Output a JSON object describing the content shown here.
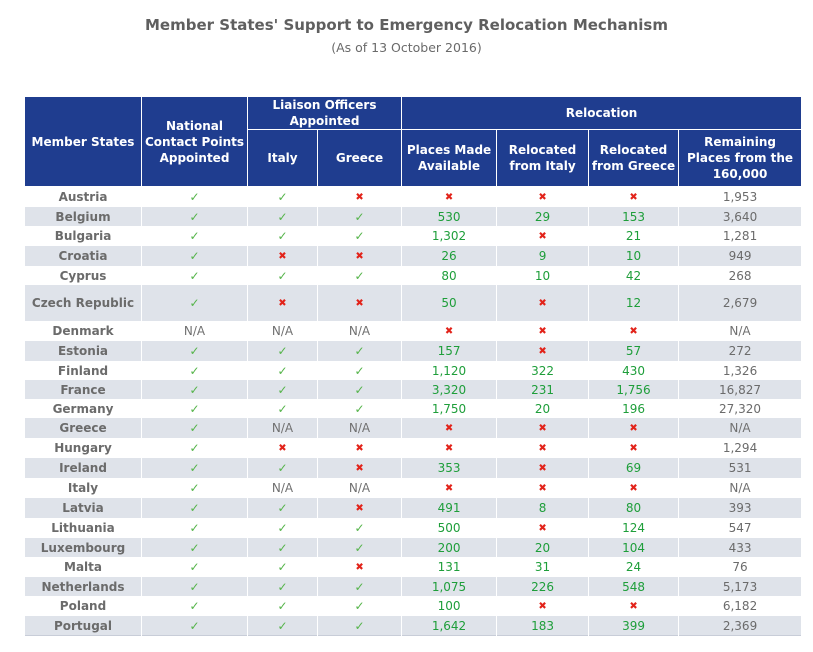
{
  "title": "Member States' Support to Emergency Relocation Mechanism",
  "subtitle": "(As of 13 October 2016)",
  "headers": {
    "member_states": "Member States",
    "ncp": "National Contact Points Appointed",
    "liaison": "Liaison Officers Appointed",
    "italy": "Italy",
    "greece": "Greece",
    "relocation": "Relocation",
    "places": "Places Made Available",
    "rel_italy": "Relocated from Italy",
    "rel_greece": "Relocated from Greece",
    "remaining": "Remaining Places from the 160,000"
  },
  "rows": [
    {
      "state": "Austria",
      "ncp": "yes",
      "lo_italy": "yes",
      "lo_greece": "no",
      "places": "no",
      "rel_italy": "no",
      "rel_greece": "no",
      "remaining": "1,953"
    },
    {
      "state": "Belgium",
      "ncp": "yes",
      "lo_italy": "yes",
      "lo_greece": "yes",
      "places": "530",
      "rel_italy": "29",
      "rel_greece": "153",
      "remaining": "3,640"
    },
    {
      "state": "Bulgaria",
      "ncp": "yes",
      "lo_italy": "yes",
      "lo_greece": "yes",
      "places": "1,302",
      "rel_italy": "no",
      "rel_greece": "21",
      "remaining": "1,281"
    },
    {
      "state": "Croatia",
      "ncp": "yes",
      "lo_italy": "no",
      "lo_greece": "no",
      "places": "26",
      "rel_italy": "9",
      "rel_greece": "10",
      "remaining": "949"
    },
    {
      "state": "Cyprus",
      "ncp": "yes",
      "lo_italy": "yes",
      "lo_greece": "yes",
      "places": "80",
      "rel_italy": "10",
      "rel_greece": "42",
      "remaining": "268"
    },
    {
      "state": "Czech Republic",
      "ncp": "yes",
      "lo_italy": "no",
      "lo_greece": "no",
      "places": "50",
      "rel_italy": "no",
      "rel_greece": "12",
      "remaining": "2,679",
      "tall": true
    },
    {
      "state": "Denmark",
      "ncp": "N/A",
      "lo_italy": "N/A",
      "lo_greece": "N/A",
      "places": "no",
      "rel_italy": "no",
      "rel_greece": "no",
      "remaining": "N/A"
    },
    {
      "state": "Estonia",
      "ncp": "yes",
      "lo_italy": "yes",
      "lo_greece": "yes",
      "places": "157",
      "rel_italy": "no",
      "rel_greece": "57",
      "remaining": "272"
    },
    {
      "state": "Finland",
      "ncp": "yes",
      "lo_italy": "yes",
      "lo_greece": "yes",
      "places": "1,120",
      "rel_italy": "322",
      "rel_greece": "430",
      "remaining": "1,326"
    },
    {
      "state": "France",
      "ncp": "yes",
      "lo_italy": "yes",
      "lo_greece": "yes",
      "places": "3,320",
      "rel_italy": "231",
      "rel_greece": "1,756",
      "remaining": "16,827"
    },
    {
      "state": "Germany",
      "ncp": "yes",
      "lo_italy": "yes",
      "lo_greece": "yes",
      "places": "1,750",
      "rel_italy": "20",
      "rel_greece": "196",
      "remaining": "27,320"
    },
    {
      "state": "Greece",
      "ncp": "yes",
      "lo_italy": "N/A",
      "lo_greece": "N/A",
      "places": "no",
      "rel_italy": "no",
      "rel_greece": "no",
      "remaining": "N/A"
    },
    {
      "state": "Hungary",
      "ncp": "yes",
      "lo_italy": "no",
      "lo_greece": "no",
      "places": "no",
      "rel_italy": "no",
      "rel_greece": "no",
      "remaining": "1,294"
    },
    {
      "state": "Ireland",
      "ncp": "yes",
      "lo_italy": "yes",
      "lo_greece": "no",
      "places": "353",
      "rel_italy": "no",
      "rel_greece": "69",
      "remaining": "531"
    },
    {
      "state": "Italy",
      "ncp": "yes",
      "lo_italy": "N/A",
      "lo_greece": "N/A",
      "places": "no",
      "rel_italy": "no",
      "rel_greece": "no",
      "remaining": "N/A"
    },
    {
      "state": "Latvia",
      "ncp": "yes",
      "lo_italy": "yes",
      "lo_greece": "no",
      "places": "491",
      "rel_italy": "8",
      "rel_greece": "80",
      "remaining": "393"
    },
    {
      "state": "Lithuania",
      "ncp": "yes",
      "lo_italy": "yes",
      "lo_greece": "yes",
      "places": "500",
      "rel_italy": "no",
      "rel_greece": "124",
      "remaining": "547"
    },
    {
      "state": "Luxembourg",
      "ncp": "yes",
      "lo_italy": "yes",
      "lo_greece": "yes",
      "places": "200",
      "rel_italy": "20",
      "rel_greece": "104",
      "remaining": "433"
    },
    {
      "state": "Malta",
      "ncp": "yes",
      "lo_italy": "yes",
      "lo_greece": "no",
      "places": "131",
      "rel_italy": "31",
      "rel_greece": "24",
      "remaining": "76"
    },
    {
      "state": "Netherlands",
      "ncp": "yes",
      "lo_italy": "yes",
      "lo_greece": "yes",
      "places": "1,075",
      "rel_italy": "226",
      "rel_greece": "548",
      "remaining": "5,173"
    },
    {
      "state": "Poland",
      "ncp": "yes",
      "lo_italy": "yes",
      "lo_greece": "yes",
      "places": "100",
      "rel_italy": "no",
      "rel_greece": "no",
      "remaining": "6,182"
    },
    {
      "state": "Portugal",
      "ncp": "yes",
      "lo_italy": "yes",
      "lo_greece": "yes",
      "places": "1,642",
      "rel_italy": "183",
      "rel_greece": "399",
      "remaining": "2,369"
    }
  ],
  "colors": {
    "header": "#1f3d8f",
    "stripe": "#dfe3ea",
    "check": "#55b44a",
    "cross": "#e2231a",
    "number": "#1e9e3a"
  },
  "icons": {
    "yes": "check-icon",
    "no": "cross-icon"
  }
}
